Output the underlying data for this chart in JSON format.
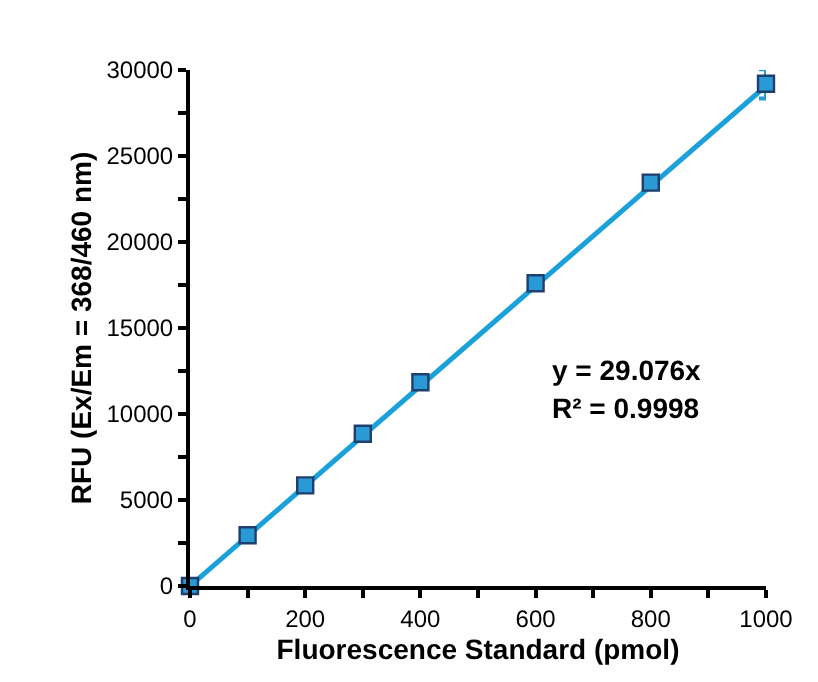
{
  "chart_data": {
    "type": "scatter",
    "xlabel": "Fluorescence Standard (pmol)",
    "ylabel": "RFU (Ex/Em = 368/460 nm)",
    "annotations": [
      "y = 29.076x",
      "R² = 0.9998"
    ],
    "series": [
      {
        "type": "line",
        "color": "#1ba1d9",
        "x": [
          0,
          1000
        ],
        "values": [
          0,
          29076
        ],
        "line_style": "solid"
      },
      {
        "color": "#2a9ad6",
        "x": [
          0,
          100,
          200,
          300,
          400,
          600,
          800,
          1000
        ],
        "values": [
          0,
          2950,
          5850,
          8850,
          11850,
          17600,
          23450,
          29200
        ],
        "errors": [
          null,
          null,
          null,
          null,
          null,
          null,
          null,
          850
        ],
        "marker": "square"
      }
    ],
    "ylim": [
      0,
      30000
    ],
    "xticks": [
      0,
      {
        "value": 100,
        "label": null
      },
      200,
      {
        "value": 300,
        "label": null
      },
      400,
      {
        "value": 500,
        "label": null
      },
      600,
      {
        "value": 700,
        "label": null
      },
      800,
      {
        "value": 900,
        "label": null
      },
      1000
    ],
    "yticks": [
      0,
      {
        "value": 2500,
        "label": null
      },
      5000,
      {
        "value": 7500,
        "label": null
      },
      10000,
      {
        "value": 12500,
        "label": null
      },
      15000,
      {
        "value": 17500,
        "label": null
      },
      20000,
      {
        "value": 22500,
        "label": null
      },
      25000,
      {
        "value": 27500,
        "label": null
      },
      30000
    ],
    "xlim": [
      0,
      1000
    ]
  }
}
